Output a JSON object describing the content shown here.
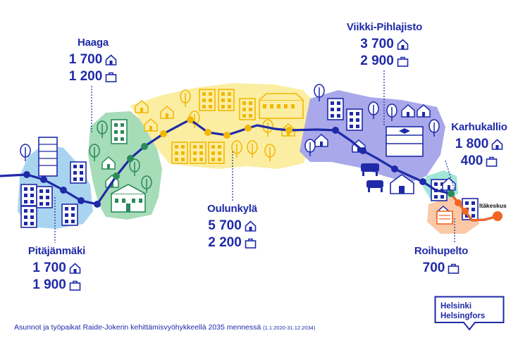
{
  "areas": {
    "haaga": {
      "name": "Haaga",
      "homes": "1 700",
      "jobs": "1 200"
    },
    "pitajanmaki": {
      "name": "Pitäjänmäki",
      "homes": "1 700",
      "jobs": "1 900"
    },
    "oulunkyla": {
      "name": "Oulunkylä",
      "homes": "5 700",
      "jobs": "2 200"
    },
    "viikki": {
      "name": "Viikki-Pihlajisto",
      "homes": "3 700",
      "jobs": "2 900"
    },
    "karhukallio": {
      "name": "Karhukallio",
      "homes": "1 800",
      "jobs": "400"
    },
    "roihupelto": {
      "name": "Roihupelto",
      "jobs": "700"
    }
  },
  "terminal_station": "Itäkeskus",
  "footer": {
    "text": "Asunnot ja työpaikat Raide-Jokerin kehittämisvyöhykkeellä 2035 mennessä",
    "period": "(1.1.2020-31.12.2034)"
  },
  "logo": {
    "line1": "Helsinki",
    "line2": "Helsingfors"
  },
  "icons": {
    "homes": "house-icon",
    "jobs": "briefcase-icon"
  },
  "colors": {
    "text": "#1f2aa8",
    "line": "#1f2aa8",
    "light_blue_zone": "#a9d4f0",
    "green_zone": "#a7dcb8",
    "yellow_zone": "#fbeea3",
    "purple_zone": "#a8a8ea",
    "teal_zone": "#a2e6d8",
    "orange_zone": "#fbc9a6",
    "line_end": "#f26522"
  }
}
